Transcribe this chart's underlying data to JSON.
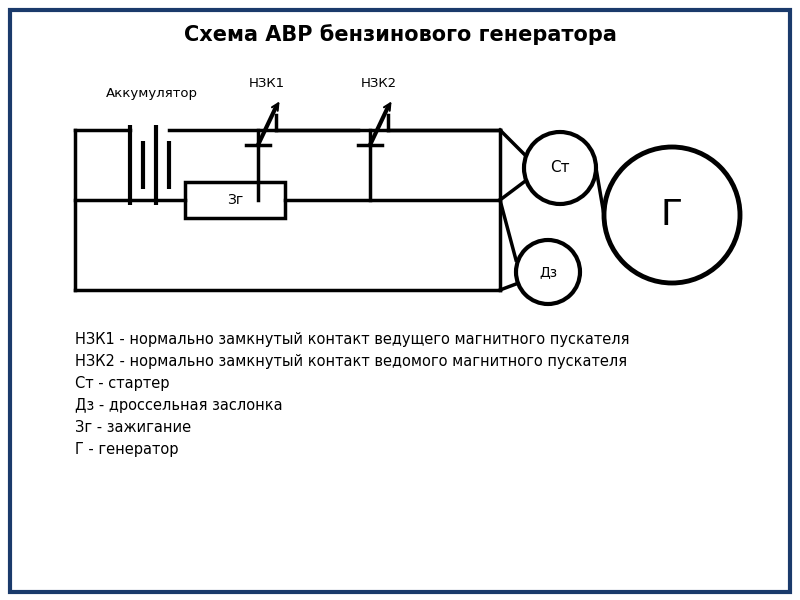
{
  "title": "Схема АВР бензинового генератора",
  "title_fontsize": 15,
  "title_fontweight": "bold",
  "bg_color": "#ffffff",
  "border_color": "#1a3a6b",
  "line_color": "#000000",
  "line_width": 2.5,
  "legend_lines": [
    "НЗК1 - нормально замкнутый контакт ведущего магнитного пускателя",
    "НЗК2 - нормально замкнутый контакт ведомого магнитного пускателя",
    "Ст - стартер",
    "Дз - дроссельная заслонка",
    "Зг - зажигание",
    "Г - генератор"
  ],
  "legend_fontsize": 10.5,
  "labels": {
    "akkum": "Аккумулятор",
    "nzk1": "НЗК1",
    "nzk2": "НЗК2",
    "st": "Ст",
    "dz": "Дз",
    "zg": "Зг",
    "g": "Г"
  }
}
